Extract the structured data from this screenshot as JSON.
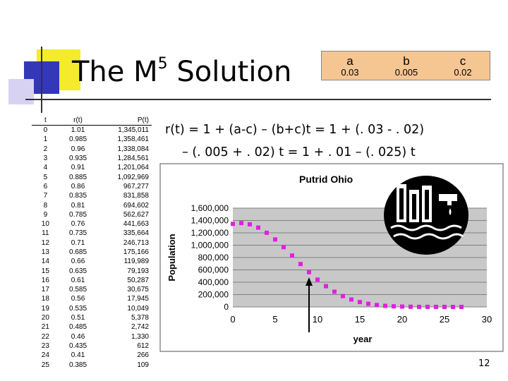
{
  "slide": {
    "title_prefix": "The M",
    "title_superscript": "5",
    "title_suffix": " Solution",
    "page_number": "12"
  },
  "parameters": {
    "headers": [
      "a",
      "b",
      "c"
    ],
    "values": [
      "0.03",
      "0.005",
      "0.02"
    ]
  },
  "formula": {
    "line1": "r(t) = 1 + (a-c) – (b+c)t = 1 + (. 03 - . 02)",
    "line2": "– (. 005 + . 02) t  =  1 + . 01 – (. 025) t"
  },
  "table": {
    "headers": [
      "t",
      "r(t)",
      "P(t)"
    ],
    "rows": [
      [
        "0",
        "1.01",
        "1,345,011"
      ],
      [
        "1",
        "0.985",
        "1,358,461"
      ],
      [
        "2",
        "0.96",
        "1,338,084"
      ],
      [
        "3",
        "0.935",
        "1,284,561"
      ],
      [
        "4",
        "0.91",
        "1,201,064"
      ],
      [
        "5",
        "0.885",
        "1,092,969"
      ],
      [
        "6",
        "0.86",
        "967,277"
      ],
      [
        "7",
        "0.835",
        "831,858"
      ],
      [
        "8",
        "0.81",
        "694,602"
      ],
      [
        "9",
        "0.785",
        "562,627"
      ],
      [
        "10",
        "0.76",
        "441,663"
      ],
      [
        "11",
        "0.735",
        "335,664"
      ],
      [
        "12",
        "0.71",
        "246,713"
      ],
      [
        "13",
        "0.685",
        "175,166"
      ],
      [
        "14",
        "0.66",
        "119,989"
      ],
      [
        "15",
        "0.635",
        "79,193"
      ],
      [
        "16",
        "0.61",
        "50,287"
      ],
      [
        "17",
        "0.585",
        "30,675"
      ],
      [
        "18",
        "0.56",
        "17,945"
      ],
      [
        "19",
        "0.535",
        "10,049"
      ],
      [
        "20",
        "0.51",
        "5,378"
      ],
      [
        "21",
        "0.485",
        "2,742"
      ],
      [
        "22",
        "0.46",
        "1,330"
      ],
      [
        "23",
        "0.435",
        "612"
      ],
      [
        "24",
        "0.41",
        "266"
      ],
      [
        "25",
        "0.385",
        "109"
      ]
    ]
  },
  "chart_data": {
    "type": "scatter",
    "title": "Putrid Ohio",
    "xlabel": "year",
    "ylabel": "Population",
    "xlim": [
      0,
      30
    ],
    "ylim": [
      0,
      1600000
    ],
    "xticks": [
      "0",
      "5",
      "10",
      "15",
      "20",
      "25",
      "30"
    ],
    "yticks": [
      "0",
      "200,000",
      "400,000",
      "600,000",
      "800,000",
      "1,000,000",
      "1,200,000",
      "1,400,000",
      "1,600,000"
    ],
    "grid": true,
    "marker_color": "#e020e0",
    "plot_background": "#c8c8c8",
    "x": [
      0,
      1,
      2,
      3,
      4,
      5,
      6,
      7,
      8,
      9,
      10,
      11,
      12,
      13,
      14,
      15,
      16,
      17,
      18,
      19,
      20,
      21,
      22,
      23,
      24,
      25,
      26,
      27
    ],
    "y": [
      1345011,
      1358461,
      1338084,
      1284561,
      1201064,
      1092969,
      967277,
      831858,
      694602,
      562627,
      441663,
      335664,
      246713,
      175166,
      119989,
      79193,
      50287,
      30675,
      17945,
      10049,
      5378,
      2742,
      1330,
      612,
      266,
      109,
      40,
      10
    ],
    "annotation": {
      "type": "arrow",
      "x": 9,
      "direction": "up"
    },
    "icon": "factory-pollution-icon"
  }
}
